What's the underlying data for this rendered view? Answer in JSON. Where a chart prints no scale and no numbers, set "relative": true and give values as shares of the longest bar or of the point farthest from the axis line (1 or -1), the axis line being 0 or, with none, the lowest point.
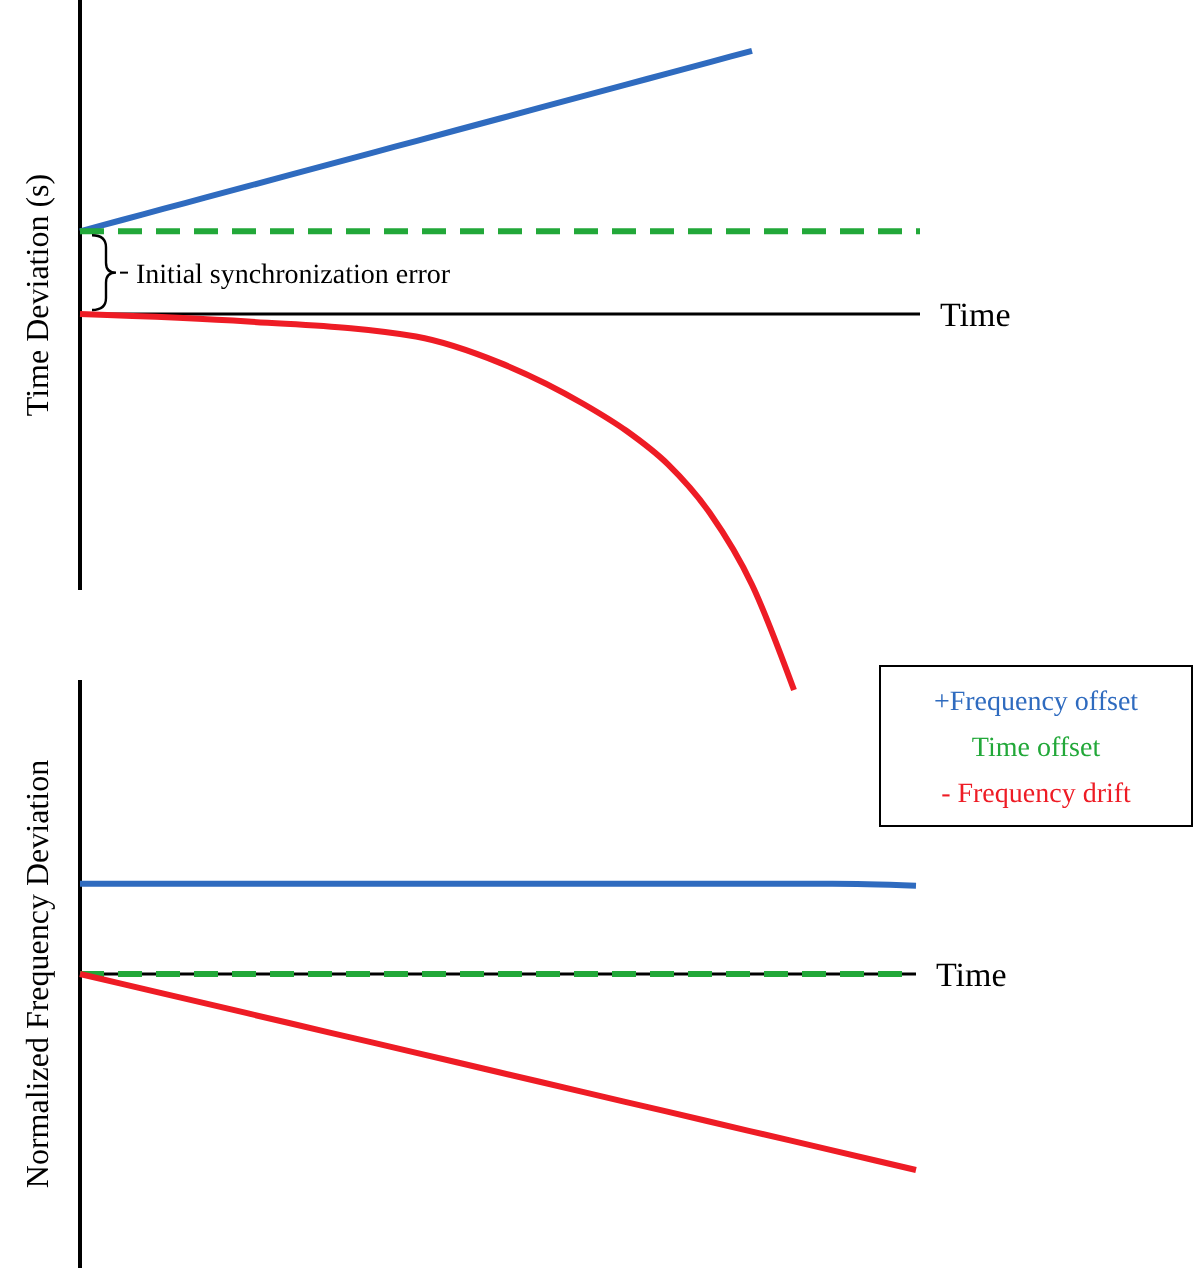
{
  "chart_data": [
    {
      "type": "line",
      "relative": true,
      "ylabel": "Time Deviation (s)",
      "xlabel": "Time",
      "legend": false,
      "categories": [
        null,
        null,
        null,
        null,
        null,
        null,
        null,
        null,
        null,
        null,
        null,
        null,
        null,
        null,
        null,
        null,
        null,
        null,
        null,
        null,
        null
      ],
      "annotations": [
        "Initial synchronization error"
      ],
      "series": [
        {
          "color": "#2f6bbf",
          "values": [
            0.22,
            0.25,
            0.28,
            0.31,
            0.34,
            0.37,
            0.4,
            0.43,
            0.46,
            0.49,
            0.52,
            0.55,
            0.58,
            0.61,
            0.64,
            0.67,
            0.7,
            null,
            null,
            null,
            null
          ]
        },
        {
          "color": "#22a839",
          "line_style": "dashed",
          "values": [
            0.22,
            0.22,
            0.22,
            0.22,
            0.22,
            0.22,
            0.22,
            0.22,
            0.22,
            0.22,
            0.22,
            0.22,
            0.22,
            0.22,
            0.22,
            0.22,
            0.22,
            0.22,
            0.22,
            0.22,
            0.22
          ]
        },
        {
          "color": "#ee1c25",
          "values": [
            0,
            null,
            null,
            null,
            -0.02,
            null,
            null,
            null,
            -0.06,
            null,
            -0.13,
            null,
            -0.24,
            -0.31,
            -0.4,
            -0.53,
            -0.72,
            -1,
            null,
            null,
            null
          ]
        }
      ]
    },
    {
      "type": "line",
      "relative": true,
      "ylabel": "Normalized Frequency Deviation",
      "xlabel": "Time",
      "legend": "top right",
      "categories": [
        null,
        null,
        null,
        null,
        null,
        null,
        null,
        null,
        null,
        null,
        null
      ],
      "series": [
        {
          "name": "+Frequency offset",
          "color": "#2f6bbf",
          "values": [
            0.46,
            0.46,
            0.46,
            0.46,
            0.46,
            0.46,
            0.46,
            0.46,
            0.46,
            0.46,
            0.45
          ]
        },
        {
          "name": "Time offset",
          "color": "#22a839",
          "line_style": "dashed",
          "values": [
            0,
            0,
            0,
            0,
            0,
            0,
            0,
            0,
            0,
            0,
            0
          ]
        },
        {
          "name": "- Frequency drift",
          "color": "#ee1c25",
          "values": [
            0,
            -0.1,
            -0.2,
            -0.3,
            -0.4,
            -0.5,
            -0.6,
            -0.7,
            -0.8,
            -0.9,
            -1
          ]
        }
      ]
    }
  ]
}
